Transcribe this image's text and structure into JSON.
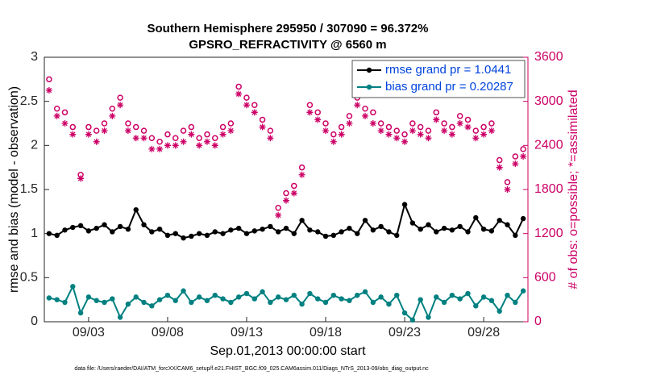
{
  "chart_data": {
    "type": "line",
    "title": "Southern Hemisphere 295950 / 307090 = 96.372%",
    "subtitle": "GPSRO_REFRACTIVITY @ 6560 m",
    "xlabel": "Sep.01,2013 00:00:00 start",
    "ylabel": "rmse and bias (model - observation)",
    "y2label": "# of obs: o=possible; *=assimilated",
    "footnote": "data file: /Users/raeder/DAI/ATM_forcXX/CAM6_setup/f.e21.FHIST_BGC.f09_025.CAM6assim.011/Diags_NTrS_2013-09/obs_diag_output.nc",
    "legend": "upper right",
    "grid": false,
    "xlim": [
      -0.8,
      29.8
    ],
    "xticks": [
      {
        "value": 2,
        "label": "09/03"
      },
      {
        "value": 7,
        "label": "09/08"
      },
      {
        "value": 12,
        "label": "09/13"
      },
      {
        "value": 17,
        "label": "09/18"
      },
      {
        "value": 22,
        "label": "09/23"
      },
      {
        "value": 27,
        "label": "09/28"
      }
    ],
    "ylim": [
      0,
      3
    ],
    "yticks": [
      0,
      0.5,
      1,
      1.5,
      2,
      2.5,
      3
    ],
    "y2lim": [
      0,
      3600
    ],
    "y2ticks": [
      0,
      600,
      1200,
      1800,
      2400,
      3000,
      3600
    ],
    "y2color": "#cc0066",
    "x": [
      -0.5,
      0,
      0.5,
      1,
      1.5,
      2,
      2.5,
      3,
      3.5,
      4,
      4.5,
      5,
      5.5,
      6,
      6.5,
      7,
      7.5,
      8,
      8.5,
      9,
      9.5,
      10,
      10.5,
      11,
      11.5,
      12,
      12.5,
      13,
      13.5,
      14,
      14.5,
      15,
      15.5,
      16,
      16.5,
      17,
      17.5,
      18,
      18.5,
      19,
      19.5,
      20,
      20.5,
      21,
      21.5,
      22,
      22.5,
      23,
      23.5,
      24,
      24.5,
      25,
      25.5,
      26,
      26.5,
      27,
      27.5,
      28,
      28.5,
      29,
      29.5
    ],
    "series": [
      {
        "name": "rmse grand pr = 1.0441",
        "color": "#000000",
        "marker": "o",
        "line": true,
        "values": [
          1.0,
          0.98,
          1.04,
          1.07,
          1.09,
          1.03,
          1.06,
          1.1,
          1.02,
          1.08,
          1.05,
          1.27,
          1.1,
          1.02,
          1.05,
          0.98,
          1.0,
          0.95,
          0.97,
          1.0,
          0.98,
          1.02,
          1.0,
          1.04,
          1.06,
          1.0,
          1.03,
          1.05,
          1.08,
          1.02,
          1.06,
          1.0,
          1.15,
          1.04,
          1.02,
          0.97,
          0.98,
          1.02,
          1.06,
          1.0,
          1.15,
          1.04,
          1.08,
          1.02,
          0.98,
          1.33,
          1.12,
          1.05,
          1.1,
          1.02,
          1.06,
          1.04,
          1.08,
          1.02,
          1.18,
          1.05,
          1.03,
          1.15,
          1.1,
          0.98,
          1.17
        ]
      },
      {
        "name": "bias grand pr = 0.20287",
        "color": "#008080",
        "marker": "o",
        "line": true,
        "values": [
          0.27,
          0.25,
          0.22,
          0.4,
          0.1,
          0.28,
          0.24,
          0.22,
          0.26,
          0.05,
          0.2,
          0.28,
          0.22,
          0.18,
          0.25,
          0.3,
          0.24,
          0.35,
          0.22,
          0.28,
          0.24,
          0.3,
          0.26,
          0.22,
          0.28,
          0.32,
          0.26,
          0.34,
          0.22,
          0.28,
          0.25,
          0.3,
          0.2,
          0.32,
          0.26,
          0.22,
          0.3,
          0.26,
          0.24,
          0.3,
          0.34,
          0.22,
          0.28,
          0.2,
          0.3,
          0.1,
          0.02,
          0.25,
          0.05,
          0.28,
          0.22,
          0.3,
          0.26,
          0.32,
          0.18,
          0.28,
          0.24,
          0.12,
          0.3,
          0.22,
          0.35
        ]
      },
      {
        "color": "#cc0066",
        "marker": "o",
        "line": false,
        "axis": "y2",
        "values": [
          3300,
          2900,
          2850,
          2650,
          2000,
          2650,
          2600,
          2700,
          2900,
          3050,
          2700,
          2650,
          2600,
          2500,
          2450,
          2550,
          2500,
          2600,
          2650,
          2500,
          2550,
          2500,
          2650,
          2700,
          3200,
          3050,
          2950,
          2750,
          2600,
          1550,
          1750,
          1850,
          2100,
          2950,
          2850,
          2700,
          2550,
          2650,
          2800,
          3050,
          2900,
          2850,
          2700,
          2650,
          2600,
          2550,
          2700,
          2650,
          2600,
          2850,
          2700,
          2650,
          2800,
          2750,
          2600,
          2650,
          2700,
          2200,
          1900,
          2250,
          2350
        ]
      },
      {
        "color": "#cc0066",
        "marker": "*",
        "line": false,
        "axis": "y2",
        "values": [
          3150,
          2800,
          2700,
          2550,
          1950,
          2550,
          2450,
          2600,
          2800,
          2950,
          2600,
          2500,
          2500,
          2350,
          2350,
          2400,
          2400,
          2450,
          2550,
          2400,
          2450,
          2400,
          2550,
          2600,
          3100,
          2950,
          2850,
          2650,
          2500,
          1450,
          1650,
          1750,
          2000,
          2850,
          2750,
          2600,
          2450,
          2550,
          2700,
          2950,
          2800,
          2700,
          2600,
          2550,
          2500,
          2450,
          2600,
          2550,
          2500,
          2750,
          2600,
          2550,
          2700,
          2650,
          2500,
          2550,
          2600,
          2100,
          1800,
          2150,
          2250
        ]
      }
    ]
  }
}
